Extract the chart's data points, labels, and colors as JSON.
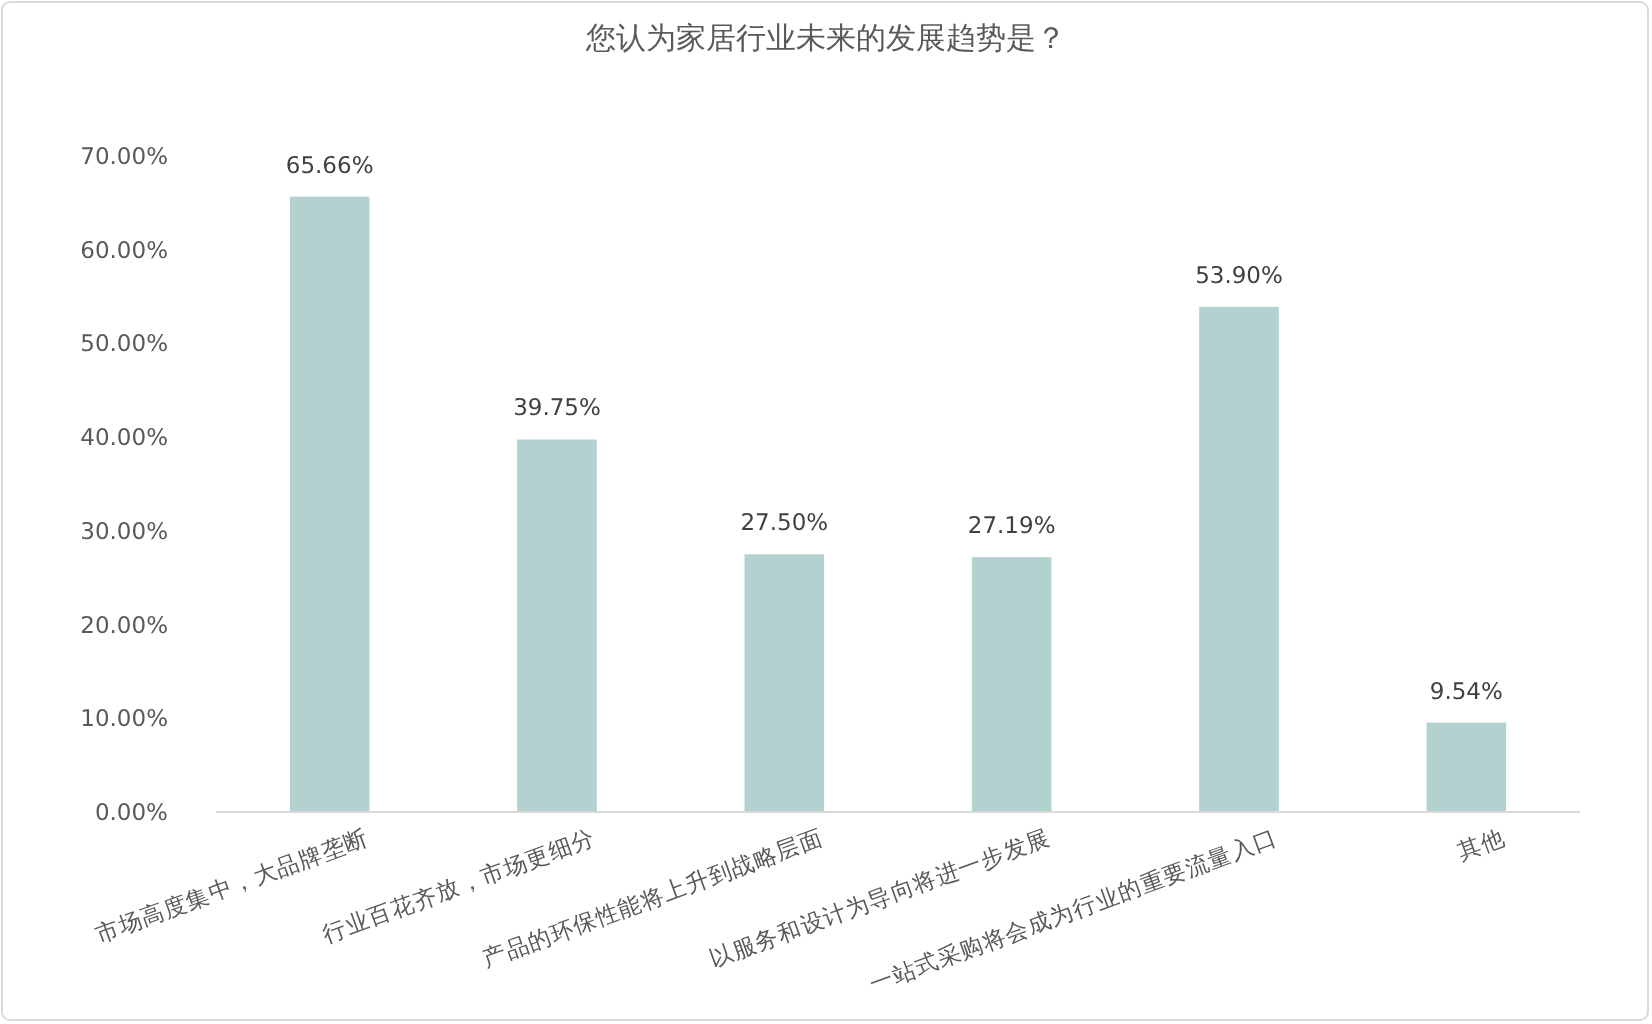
{
  "chart_data": {
    "type": "bar",
    "title": "您认为家居行业未来的发展趋势是？",
    "categories": [
      "市场高度集中，大品牌垄断",
      "行业百花齐放，市场更细分",
      "产品的环保性能将上升到战略层面",
      "以服务和设计为导向将进一步发展",
      "一站式采购将会成为行业的重要流量入口",
      "其他"
    ],
    "values": [
      65.66,
      39.75,
      27.5,
      27.19,
      53.9,
      9.54
    ],
    "value_labels": [
      "65.66%",
      "39.75%",
      "27.50%",
      "27.19%",
      "53.90%",
      "9.54%"
    ],
    "color": "#b2d1cf",
    "ylim": [
      0,
      70
    ],
    "yticks": [
      {
        "value": 0,
        "label": "0.00%"
      },
      {
        "value": 10,
        "label": "10.00%"
      },
      {
        "value": 20,
        "label": "20.00%"
      },
      {
        "value": 30,
        "label": "30.00%"
      },
      {
        "value": 40,
        "label": "40.00%"
      },
      {
        "value": 50,
        "label": "50.00%"
      },
      {
        "value": 60,
        "label": "60.00%"
      },
      {
        "value": 70,
        "label": "70.00%"
      }
    ]
  }
}
